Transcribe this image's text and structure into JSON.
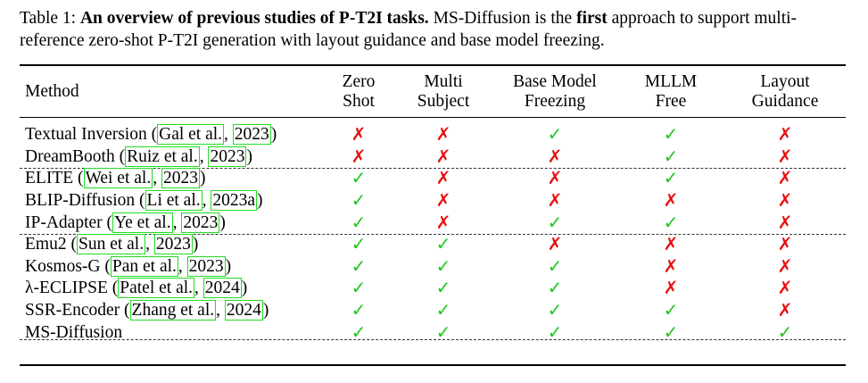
{
  "caption": {
    "label": "Table 1:",
    "title": "An overview of previous studies of P-T2I tasks.",
    "text1": "MS-Diffusion is the",
    "emphasis": "first",
    "text2": "approach to support multi-reference zero-shot P-T2I generation with layout guidance and base model freezing."
  },
  "columns": [
    {
      "line1": "Method"
    },
    {
      "line1": "Zero",
      "line2": "Shot"
    },
    {
      "line1": "Multi",
      "line2": "Subject"
    },
    {
      "line1": "Base Model",
      "line2": "Freezing"
    },
    {
      "line1": "MLLM",
      "line2": "Free"
    },
    {
      "line1": "Layout",
      "line2": "Guidance"
    }
  ],
  "symbols": {
    "yes": "✓",
    "no": "✗"
  },
  "colors": {
    "yes": "#1ec81e",
    "no": "#e81010",
    "citation_box": "#22dd22"
  },
  "rows": [
    {
      "name": "Textual Inversion",
      "cite_author": "Gal et al.",
      "cite_year": "2023",
      "marks": [
        false,
        false,
        true,
        true,
        false
      ]
    },
    {
      "name": "DreamBooth",
      "cite_author": "Ruiz et al.",
      "cite_year": "2023",
      "marks": [
        false,
        false,
        false,
        true,
        false
      ]
    },
    {
      "name": "ELITE",
      "cite_author": "Wei et al.",
      "cite_year": "2023",
      "marks": [
        true,
        false,
        false,
        true,
        false
      ]
    },
    {
      "name": "BLIP-Diffusion",
      "cite_author": "Li et al.",
      "cite_year": "2023a",
      "marks": [
        true,
        false,
        false,
        false,
        false
      ]
    },
    {
      "name": "IP-Adapter",
      "cite_author": "Ye et al.",
      "cite_year": "2023",
      "marks": [
        true,
        false,
        true,
        true,
        false
      ]
    },
    {
      "name": "Emu2",
      "cite_author": "Sun et al.",
      "cite_year": "2023",
      "marks": [
        true,
        true,
        false,
        false,
        false
      ]
    },
    {
      "name": "Kosmos-G",
      "cite_author": "Pan et al.",
      "cite_year": "2023",
      "marks": [
        true,
        true,
        true,
        false,
        false
      ]
    },
    {
      "name": "λ-ECLIPSE",
      "cite_author": "Patel et al.",
      "cite_year": "2024",
      "marks": [
        true,
        true,
        true,
        false,
        false
      ]
    },
    {
      "name": "SSR-Encoder",
      "cite_author": "Zhang et al.",
      "cite_year": "2024",
      "marks": [
        true,
        true,
        true,
        true,
        false
      ]
    },
    {
      "name": "MS-Diffusion",
      "cite_author": "",
      "cite_year": "",
      "bold": true,
      "marks": [
        true,
        true,
        true,
        true,
        true
      ]
    }
  ]
}
